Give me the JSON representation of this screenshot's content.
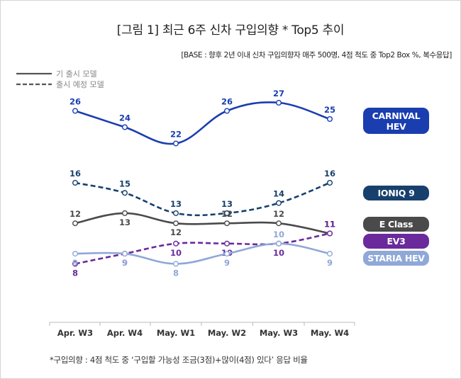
{
  "title": "[그림 1] 최근 6주 신차 구입의향 * Top5 추이",
  "base_note": "[BASE : 향후 2년 이내 신차 구입의향자 매주 500명, 4점 척도 중 Top2 Box %, 복수응답]",
  "legend": [
    {
      "label": "기 출시 모델",
      "style": "solid"
    },
    {
      "label": "출시 예정 모델",
      "style": "dashed"
    }
  ],
  "footnote": "*구입의향 : 4점 척도 중 ‘구입할 가능성 조금(3점)+많이(4점) 있다’ 응답 비율",
  "chart_data": {
    "type": "line",
    "categories": [
      "Apr. W3",
      "Apr. W4",
      "May. W1",
      "May. W2",
      "May. W3",
      "May. W4"
    ],
    "series": [
      {
        "name": "CARNIVAL HEV",
        "label_lines": [
          "CARNIVAL",
          "HEV"
        ],
        "values": [
          26,
          24,
          22,
          26,
          27,
          25
        ],
        "color": "#1a3eb0",
        "style": "solid",
        "label_pos": "above"
      },
      {
        "name": "IONIQ 9",
        "label_lines": [
          "IONIQ 9"
        ],
        "values": [
          16,
          15,
          13,
          13,
          14,
          16
        ],
        "color": "#17406d",
        "style": "dashed",
        "label_pos": "above"
      },
      {
        "name": "E Class",
        "label_lines": [
          "E Class"
        ],
        "values": [
          12,
          13,
          12,
          12,
          12,
          11
        ],
        "color": "#4a4a4a",
        "style": "solid",
        "label_pos": "mixed"
      },
      {
        "name": "EV3",
        "label_lines": [
          "EV3"
        ],
        "values": [
          8,
          9,
          10,
          10,
          10,
          11
        ],
        "color": "#6a2a9c",
        "style": "dashed",
        "label_pos": "below"
      },
      {
        "name": "STARIA HEV",
        "label_lines": [
          "STARIA HEV"
        ],
        "values": [
          9,
          9,
          8,
          9,
          10,
          9
        ],
        "color": "#8fa8d8",
        "style": "solid",
        "label_pos": "below"
      }
    ],
    "legend_placement": "right",
    "grid": false
  }
}
